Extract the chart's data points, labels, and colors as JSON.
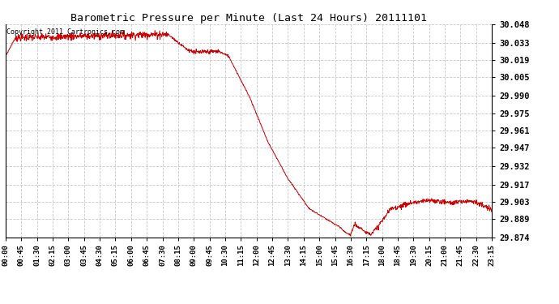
{
  "title": "Barometric Pressure per Minute (Last 24 Hours) 20111101",
  "copyright": "Copyright 2011 Cartronics.com",
  "line_color": "#cc0000",
  "background_color": "#ffffff",
  "grid_color": "#c8c8c8",
  "ylim": [
    29.874,
    30.048
  ],
  "yticks": [
    29.874,
    29.889,
    29.903,
    29.917,
    29.932,
    29.947,
    29.961,
    29.975,
    29.99,
    30.005,
    30.019,
    30.033,
    30.048
  ],
  "xtick_labels": [
    "00:00",
    "00:45",
    "01:30",
    "02:15",
    "03:00",
    "03:45",
    "04:30",
    "05:15",
    "06:00",
    "06:45",
    "07:30",
    "08:15",
    "09:00",
    "09:45",
    "10:30",
    "11:15",
    "12:00",
    "12:45",
    "13:30",
    "14:15",
    "15:00",
    "15:45",
    "16:30",
    "17:15",
    "18:00",
    "18:45",
    "19:30",
    "20:15",
    "21:00",
    "21:45",
    "22:30",
    "23:15"
  ],
  "num_points": 1440,
  "segments": [
    [
      0,
      30,
      30.022,
      30.037,
      0.0003
    ],
    [
      30,
      480,
      30.037,
      30.04,
      0.0015
    ],
    [
      480,
      540,
      30.04,
      30.027,
      0.0005
    ],
    [
      540,
      570,
      30.027,
      30.025,
      0.001
    ],
    [
      570,
      630,
      30.025,
      30.026,
      0.001
    ],
    [
      630,
      660,
      30.026,
      30.022,
      0.0005
    ],
    [
      660,
      720,
      30.022,
      29.99,
      0.0003
    ],
    [
      720,
      780,
      29.99,
      29.95,
      0.0003
    ],
    [
      780,
      840,
      29.95,
      29.92,
      0.0003
    ],
    [
      840,
      900,
      29.92,
      29.897,
      0.0003
    ],
    [
      900,
      960,
      29.897,
      29.887,
      0.0003
    ],
    [
      960,
      990,
      29.887,
      29.882,
      0.0003
    ],
    [
      990,
      1005,
      29.882,
      29.878,
      0.0003
    ],
    [
      1005,
      1020,
      29.878,
      29.876,
      0.0003
    ],
    [
      1020,
      1035,
      29.876,
      29.884,
      0.001
    ],
    [
      1035,
      1050,
      29.884,
      29.882,
      0.001
    ],
    [
      1050,
      1065,
      29.882,
      29.878,
      0.0005
    ],
    [
      1065,
      1080,
      29.878,
      29.877,
      0.0005
    ],
    [
      1080,
      1095,
      29.877,
      29.88,
      0.001
    ],
    [
      1095,
      1140,
      29.88,
      29.897,
      0.001
    ],
    [
      1140,
      1200,
      29.897,
      29.902,
      0.001
    ],
    [
      1200,
      1260,
      29.902,
      29.904,
      0.001
    ],
    [
      1260,
      1320,
      29.904,
      29.902,
      0.001
    ],
    [
      1320,
      1380,
      29.902,
      29.904,
      0.001
    ],
    [
      1380,
      1440,
      29.904,
      29.896,
      0.001
    ]
  ]
}
